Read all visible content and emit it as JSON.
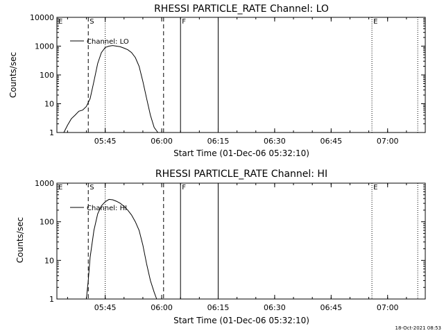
{
  "footer": {
    "timestamp": "18-Oct-2021 08:53"
  },
  "colors": {
    "background": "#ffffff",
    "foreground": "#000000"
  },
  "chart_data": [
    {
      "type": "line",
      "title": "RHESSI PARTICLE_RATE Channel: LO",
      "xlabel": "Start Time (01-Dec-06 05:32:10)",
      "ylabel": "Counts/sec",
      "yscale": "log",
      "ylim": [
        1,
        10000
      ],
      "ytick_values": [
        1,
        10,
        100,
        1000,
        10000
      ],
      "ytick_labels": [
        "1",
        "10",
        "100",
        "1000",
        "10000"
      ],
      "xlim": [
        "05:32:10",
        "07:10:00"
      ],
      "xtick_values": [
        "05:45",
        "06:00",
        "06:15",
        "06:30",
        "06:45",
        "07:00"
      ],
      "xtick_labels": [
        "05:45",
        "06:00",
        "06:15",
        "06:30",
        "06:45",
        "07:00"
      ],
      "legend": {
        "label": "Channel: LO",
        "placement": "top-left"
      },
      "markers": [
        {
          "label": "E",
          "time": "05:32:10",
          "style": "dotted"
        },
        {
          "label": "S",
          "time": "05:40:30",
          "style": "dashed"
        },
        {
          "label": "",
          "time": "05:45:00",
          "style": "dotted"
        },
        {
          "label": "",
          "time": "06:00:30",
          "style": "dashed"
        },
        {
          "label": "F",
          "time": "06:05:00",
          "style": "solid"
        },
        {
          "label": "",
          "time": "06:15:00",
          "style": "solid"
        },
        {
          "label": "E",
          "time": "06:55:50",
          "style": "dotted"
        },
        {
          "label": "",
          "time": "07:08:00",
          "style": "dotted"
        }
      ],
      "series": [
        {
          "x": [
            "05:34:00",
            "05:35:00",
            "05:36:00",
            "05:37:00",
            "05:38:00",
            "05:39:00",
            "05:40:00",
            "05:41:00",
            "05:42:00",
            "05:43:00",
            "05:44:00",
            "05:45:00",
            "05:46:00",
            "05:47:00",
            "05:48:00",
            "05:49:00",
            "05:50:00",
            "05:51:00",
            "05:52:00",
            "05:53:00",
            "05:54:00",
            "05:55:00",
            "05:56:00",
            "05:57:00",
            "05:58:00",
            "05:59:00"
          ],
          "y": [
            1,
            1.8,
            3,
            4,
            5.5,
            6,
            8,
            15,
            60,
            250,
            600,
            900,
            1000,
            1050,
            1000,
            950,
            850,
            750,
            600,
            400,
            200,
            60,
            15,
            4,
            1.5,
            1
          ]
        }
      ]
    },
    {
      "type": "line",
      "title": "RHESSI PARTICLE_RATE Channel: HI",
      "xlabel": "Start Time (01-Dec-06 05:32:10)",
      "ylabel": "Counts/sec",
      "yscale": "log",
      "ylim": [
        1,
        1000
      ],
      "ytick_values": [
        1,
        10,
        100,
        1000
      ],
      "ytick_labels": [
        "1",
        "10",
        "100",
        "1000"
      ],
      "xlim": [
        "05:32:10",
        "07:10:00"
      ],
      "xtick_values": [
        "05:45",
        "06:00",
        "06:15",
        "06:30",
        "06:45",
        "07:00"
      ],
      "xtick_labels": [
        "05:45",
        "06:00",
        "06:15",
        "06:30",
        "06:45",
        "07:00"
      ],
      "legend": {
        "label": "Channel: HI",
        "placement": "top-left"
      },
      "markers": [
        {
          "label": "E",
          "time": "05:32:10",
          "style": "dotted"
        },
        {
          "label": "S",
          "time": "05:40:30",
          "style": "dashed"
        },
        {
          "label": "",
          "time": "05:45:00",
          "style": "dotted"
        },
        {
          "label": "",
          "time": "06:00:30",
          "style": "dashed"
        },
        {
          "label": "F",
          "time": "06:05:00",
          "style": "solid"
        },
        {
          "label": "",
          "time": "06:15:00",
          "style": "solid"
        },
        {
          "label": "E",
          "time": "06:55:50",
          "style": "dotted"
        },
        {
          "label": "",
          "time": "07:08:00",
          "style": "dotted"
        }
      ],
      "series": [
        {
          "x": [
            "05:40:00",
            "05:40:30",
            "05:41:00",
            "05:42:00",
            "05:43:00",
            "05:44:00",
            "05:45:00",
            "05:46:00",
            "05:47:00",
            "05:48:00",
            "05:49:00",
            "05:50:00",
            "05:51:00",
            "05:52:00",
            "05:53:00",
            "05:54:00",
            "05:55:00",
            "05:56:00",
            "05:57:00",
            "05:58:00",
            "05:58:40"
          ],
          "y": [
            1,
            3,
            12,
            60,
            160,
            260,
            330,
            380,
            370,
            340,
            300,
            250,
            200,
            150,
            100,
            60,
            25,
            8,
            3,
            1.5,
            1
          ]
        }
      ]
    }
  ]
}
